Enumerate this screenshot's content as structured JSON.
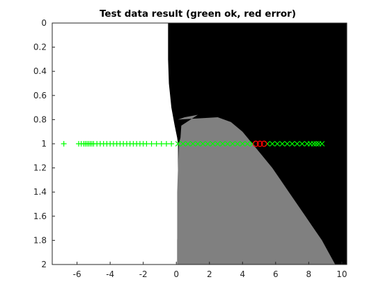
{
  "chart_data": {
    "type": "scatter",
    "title": "Test data result (green ok, red error)",
    "xlabel": "",
    "ylabel": "",
    "xlim": [
      -7.5,
      10.3
    ],
    "ylim": [
      2.0,
      0.0
    ],
    "y_axis_reversed": true,
    "grid": false,
    "x_ticks": [
      -6,
      -4,
      -2,
      0,
      2,
      4,
      6,
      8,
      10
    ],
    "y_ticks": [
      0,
      0.2,
      0.4,
      0.6,
      0.8,
      1,
      1.2,
      1.4,
      1.6,
      1.8,
      2
    ],
    "y_tick_labels": [
      "0",
      "0.2",
      "0.4",
      "0.6",
      "0.8",
      "1",
      "1.2",
      "1.4",
      "1.6",
      "1.8",
      "2"
    ],
    "background_regions": {
      "description": "classifier decision regions",
      "colors": {
        "white": "#ffffff",
        "gray": "#808080",
        "black": "#000000"
      },
      "white_black_boundary": [
        [
          0.0,
          -0.5
        ],
        [
          0.3,
          -0.5
        ],
        [
          0.5,
          -0.45
        ],
        [
          0.7,
          -0.3
        ],
        [
          0.85,
          -0.1
        ],
        [
          0.95,
          0.05
        ],
        [
          1.0,
          0.1
        ],
        [
          1.2,
          0.1
        ],
        [
          1.4,
          0.1
        ],
        [
          1.6,
          0.1
        ],
        [
          1.8,
          0.05
        ],
        [
          2.0,
          0.05
        ]
      ],
      "gray_region_left_edge": [
        [
          0.85,
          0.3
        ],
        [
          0.95,
          0.25
        ],
        [
          1.0,
          0.15
        ],
        [
          1.2,
          0.1
        ],
        [
          1.4,
          0.05
        ],
        [
          1.6,
          0.05
        ],
        [
          1.8,
          0.05
        ],
        [
          2.0,
          0.05
        ]
      ],
      "gray_black_boundary": [
        [
          0.76,
          1.3
        ],
        [
          0.78,
          0.5
        ],
        [
          0.8,
          0.1
        ],
        [
          0.78,
          2.5
        ],
        [
          0.82,
          3.3
        ],
        [
          0.9,
          4.0
        ],
        [
          1.0,
          4.6
        ],
        [
          1.1,
          5.2
        ],
        [
          1.2,
          5.8
        ],
        [
          1.3,
          6.3
        ],
        [
          1.4,
          6.8
        ],
        [
          1.5,
          7.3
        ],
        [
          1.6,
          7.8
        ],
        [
          1.7,
          8.3
        ],
        [
          1.8,
          8.8
        ],
        [
          1.9,
          9.2
        ],
        [
          2.0,
          9.6
        ]
      ]
    },
    "series": [
      {
        "marker": "+",
        "color": "#00ff00",
        "points": [
          [
            -6.8,
            1
          ],
          [
            -5.9,
            1
          ],
          [
            -5.75,
            1
          ],
          [
            -5.6,
            1
          ],
          [
            -5.5,
            1
          ],
          [
            -5.4,
            1
          ],
          [
            -5.3,
            1
          ],
          [
            -5.2,
            1
          ],
          [
            -5.1,
            1
          ],
          [
            -5.0,
            1
          ],
          [
            -4.8,
            1
          ],
          [
            -4.6,
            1
          ],
          [
            -4.4,
            1
          ],
          [
            -4.2,
            1
          ],
          [
            -4.0,
            1
          ],
          [
            -3.8,
            1
          ],
          [
            -3.6,
            1
          ],
          [
            -3.4,
            1
          ],
          [
            -3.2,
            1
          ],
          [
            -3.0,
            1
          ],
          [
            -2.8,
            1
          ],
          [
            -2.6,
            1
          ],
          [
            -2.4,
            1
          ],
          [
            -2.2,
            1
          ],
          [
            -2.0,
            1
          ],
          [
            -1.8,
            1
          ],
          [
            -1.5,
            1
          ],
          [
            -1.2,
            1
          ],
          [
            -0.9,
            1
          ],
          [
            -0.6,
            1
          ],
          [
            -0.3,
            1
          ]
        ]
      },
      {
        "marker": "x",
        "color": "#00ff00",
        "points": [
          [
            0.1,
            1
          ],
          [
            0.4,
            1
          ],
          [
            0.7,
            1
          ],
          [
            1.0,
            1
          ],
          [
            1.3,
            1
          ],
          [
            1.6,
            1
          ],
          [
            1.9,
            1
          ],
          [
            2.2,
            1
          ],
          [
            2.5,
            1
          ],
          [
            2.8,
            1
          ],
          [
            3.1,
            1
          ],
          [
            3.4,
            1
          ],
          [
            3.7,
            1
          ],
          [
            4.0,
            1
          ],
          [
            4.3,
            1
          ],
          [
            4.6,
            1
          ],
          [
            5.5,
            1
          ],
          [
            5.8,
            1
          ],
          [
            6.1,
            1
          ],
          [
            6.4,
            1
          ],
          [
            6.7,
            1
          ],
          [
            7.0,
            1
          ],
          [
            7.3,
            1
          ],
          [
            7.6,
            1
          ],
          [
            7.9,
            1
          ],
          [
            8.1,
            1
          ],
          [
            8.3,
            1
          ],
          [
            8.45,
            1
          ],
          [
            8.6,
            1
          ],
          [
            8.8,
            1
          ]
        ]
      },
      {
        "marker": "o",
        "color": "#ff0000",
        "points": [
          [
            4.8,
            1
          ],
          [
            5.05,
            1
          ],
          [
            5.3,
            1
          ]
        ]
      }
    ]
  }
}
